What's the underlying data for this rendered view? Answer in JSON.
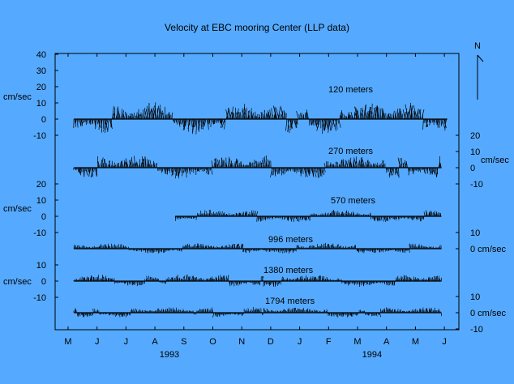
{
  "chart_data": {
    "type": "stick-plot",
    "title": "Velocity at EBC mooring Center (LLP data)",
    "north_label": "N",
    "x_ticks": [
      "M",
      "J",
      "J",
      "A",
      "S",
      "O",
      "N",
      "D",
      "J",
      "F",
      "M",
      "A",
      "M",
      "J"
    ],
    "x_year_labels": [
      {
        "label": "1993",
        "tick_index": 3.5
      },
      {
        "label": "1994",
        "tick_index": 10.5
      }
    ],
    "left_axes": [
      {
        "ticks": [
          "40",
          "30",
          "20",
          "10",
          "0",
          "-10"
        ],
        "values": [
          40,
          30,
          20,
          10,
          0,
          -10
        ],
        "baseline_depth": "120 meters",
        "unit_label": "cm/sec",
        "unit_value": 20
      },
      {
        "ticks": [
          "20",
          "10",
          "0",
          "-10"
        ],
        "values": [
          20,
          10,
          0,
          -10
        ],
        "baseline_depth": "570 meters",
        "unit_label": "cm/sec",
        "unit_value": 10
      },
      {
        "ticks": [
          "10",
          "0",
          "-10"
        ],
        "values": [
          10,
          0,
          -10
        ],
        "baseline_depth": "1380 meters",
        "unit_label": "cm/sec",
        "unit_value": 10
      }
    ],
    "right_axes": [
      {
        "ticks": [
          "20",
          "10",
          "0",
          "-10"
        ],
        "values": [
          20,
          10,
          0,
          -10
        ],
        "baseline_depth": "270 meters",
        "unit_label": "cm/sec",
        "unit_value": 5
      },
      {
        "ticks": [
          "10",
          "0 cm/sec"
        ],
        "values": [
          10,
          0
        ],
        "baseline_depth": "996 meters"
      },
      {
        "ticks": [
          "10",
          "0 cm/sec",
          "-10"
        ],
        "values": [
          10,
          0,
          -10
        ],
        "baseline_depth": "1794 meters"
      }
    ],
    "series": [
      {
        "name": "120 meters",
        "start_month": 0.2,
        "end_month": 13.1,
        "amplitude": 18
      },
      {
        "name": "270 meters",
        "start_month": 0.2,
        "end_month": 12.9,
        "amplitude": 13
      },
      {
        "name": "570 meters",
        "start_month": 3.7,
        "end_month": 12.9,
        "amplitude": 7
      },
      {
        "name": "996 meters",
        "start_month": 0.2,
        "end_month": 12.9,
        "amplitude": 6
      },
      {
        "name": "1380 meters",
        "start_month": 0.2,
        "end_month": 12.9,
        "amplitude": 7
      },
      {
        "name": "1794 meters",
        "start_month": 0.2,
        "end_month": 12.9,
        "amplitude": 6
      }
    ]
  }
}
